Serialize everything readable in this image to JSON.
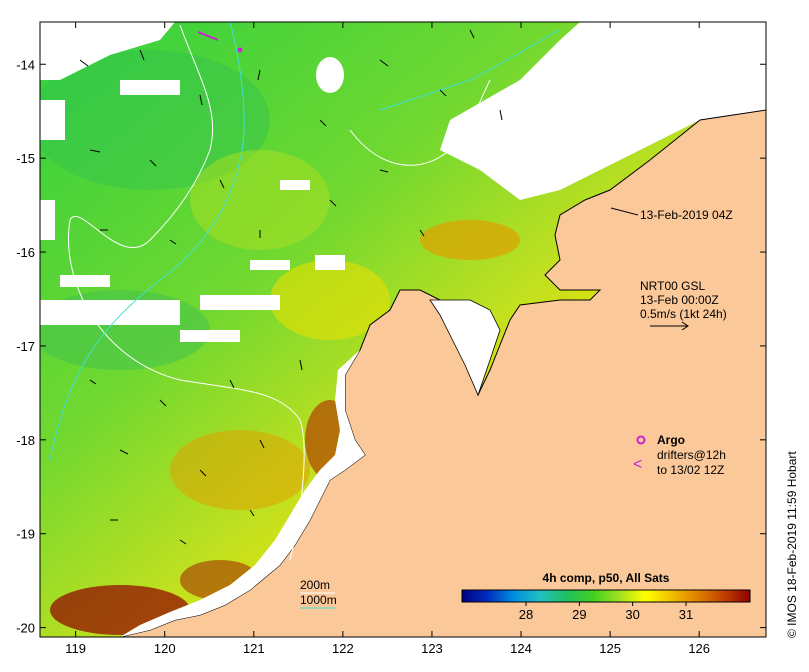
{
  "map": {
    "lon_range": [
      118.6,
      126.75
    ],
    "lat_range": [
      -20.1,
      -13.55
    ],
    "lon_ticks": [
      119,
      120,
      121,
      122,
      123,
      124,
      125,
      126
    ],
    "lat_ticks": [
      -14,
      -15,
      -16,
      -17,
      -18,
      -19,
      -20
    ],
    "lon_tick_labels": [
      "119",
      "120",
      "121",
      "122",
      "123",
      "124",
      "125",
      "126"
    ],
    "lat_tick_labels": [
      "-14",
      "-15",
      "-16",
      "-17",
      "-18",
      "-19",
      "-20"
    ],
    "colors": {
      "land": "#fbc89a",
      "cloud": "#ffffff",
      "isobath": "#ffffff",
      "isobath_1000": "#40e0d0",
      "argo": "#d020d0",
      "drifter": "#d020d0"
    }
  },
  "image_title": "13-Feb-2019 04Z",
  "current_legend": {
    "line1": "NRT00 GSL",
    "line2": "13-Feb 00:00Z",
    "line3": "0.5m/s (1kt 24h)"
  },
  "argo_legend": {
    "argo_label": "Argo",
    "drifters_line1": "drifters@12h",
    "drifters_line2": "to 13/02 12Z",
    "drifter_glyph": "<"
  },
  "isobath_legend": {
    "label_200": "200m",
    "label_1000": "1000m"
  },
  "colorbar": {
    "title": "4h comp, p50, All Sats",
    "ticks": [
      28,
      29,
      30,
      31
    ],
    "tick_labels": [
      "28",
      "29",
      "30",
      "31"
    ],
    "range": [
      26.8,
      32.2
    ],
    "stops": [
      "#000080",
      "#0030c0",
      "#0090e0",
      "#20c0c0",
      "#20c060",
      "#40d020",
      "#a0e020",
      "#ffff00",
      "#f0c000",
      "#e08000",
      "#c04000",
      "#900000"
    ]
  },
  "credit": "© IMOS 18-Feb-2019 11:59 Hobart"
}
